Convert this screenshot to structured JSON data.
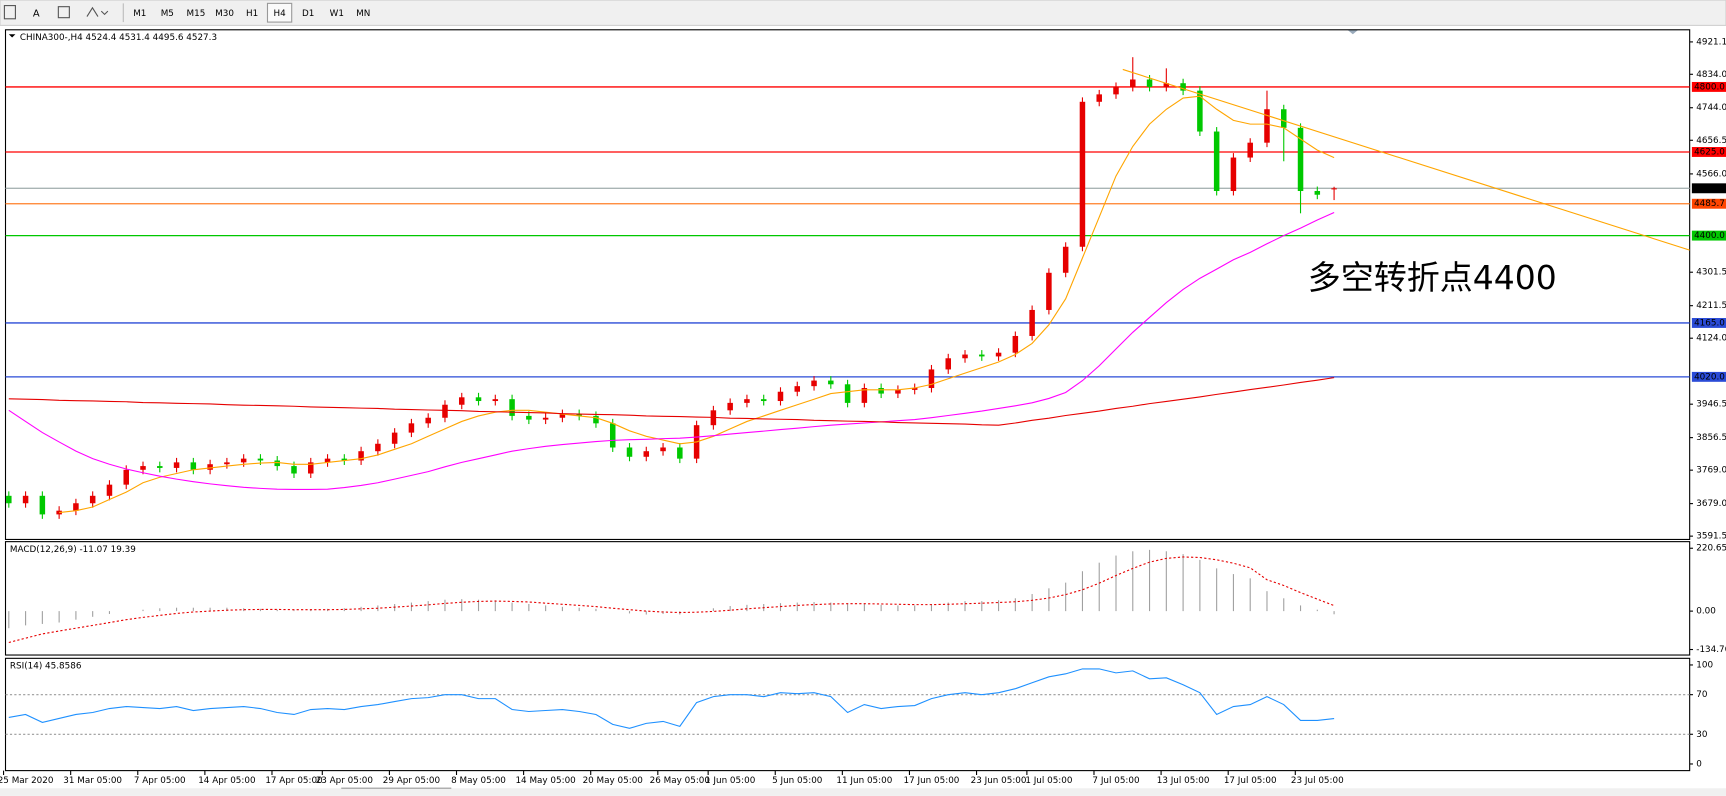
{
  "toolbar": {
    "font_button": "A",
    "periods": [
      "M1",
      "M5",
      "M15",
      "M30",
      "H1",
      "H4",
      "D1",
      "W1",
      "MN"
    ]
  },
  "chart_data": [
    {
      "type": "candlestick",
      "title": "CHINA300-,H4  4524.4 4531.4 4495.6 4527.3",
      "up_color": "#e60000",
      "down_color": "#00c800",
      "open": [
        3700,
        3680,
        3700,
        3650,
        3660,
        3680,
        3700,
        3730,
        3770,
        3780,
        3775,
        3790,
        3770,
        3785,
        3790,
        3800,
        3795,
        3780,
        3760,
        3790,
        3800,
        3795,
        3820,
        3840,
        3870,
        3895,
        3910,
        3945,
        3965,
        3955,
        3960,
        3915,
        3905,
        3910,
        3920,
        3915,
        3895,
        3830,
        3805,
        3820,
        3830,
        3800,
        3890,
        3930,
        3950,
        3960,
        3955,
        3980,
        3995,
        4010,
        4000,
        3950,
        3990,
        3975,
        3985,
        3990,
        4040,
        4070,
        4080,
        4075,
        4085,
        4130,
        4200,
        4300,
        4370,
        4760,
        4780,
        4800,
        4820,
        4800,
        4810,
        4790,
        4680,
        4520,
        4610,
        4650,
        4740,
        4690,
        4520,
        4524.4
      ],
      "high": [
        3712,
        3712,
        3712,
        3672,
        3692,
        3712,
        3742,
        3782,
        3792,
        3792,
        3802,
        3802,
        3797,
        3802,
        3812,
        3812,
        3807,
        3792,
        3802,
        3812,
        3812,
        3832,
        3852,
        3882,
        3907,
        3922,
        3957,
        3977,
        3977,
        3972,
        3972,
        3927,
        3922,
        3932,
        3932,
        3927,
        3907,
        3842,
        3832,
        3842,
        3842,
        3902,
        3942,
        3962,
        3972,
        3972,
        3992,
        4007,
        4022,
        4022,
        4012,
        4002,
        4002,
        3997,
        4002,
        4052,
        4082,
        4092,
        4092,
        4097,
        4142,
        4212,
        4312,
        4382,
        4772,
        4792,
        4812,
        4880,
        4832,
        4850,
        4822,
        4802,
        4692,
        4622,
        4662,
        4790,
        4752,
        4702,
        4532,
        4531.4
      ],
      "low": [
        3668,
        3668,
        3638,
        3638,
        3648,
        3668,
        3688,
        3718,
        3758,
        3763,
        3763,
        3758,
        3758,
        3773,
        3778,
        3783,
        3768,
        3748,
        3748,
        3778,
        3783,
        3783,
        3808,
        3828,
        3858,
        3883,
        3898,
        3933,
        3943,
        3943,
        3903,
        3893,
        3893,
        3898,
        3903,
        3883,
        3818,
        3793,
        3793,
        3808,
        3788,
        3788,
        3878,
        3918,
        3938,
        3943,
        3943,
        3968,
        3983,
        3988,
        3938,
        3938,
        3963,
        3963,
        3973,
        3978,
        4028,
        4058,
        4063,
        4063,
        4073,
        4118,
        4188,
        4288,
        4358,
        4748,
        4768,
        4788,
        4788,
        4788,
        4778,
        4668,
        4508,
        4508,
        4598,
        4638,
        4600,
        4460,
        4498,
        4495.6
      ],
      "close": [
        3680,
        3700,
        3650,
        3660,
        3680,
        3700,
        3730,
        3770,
        3780,
        3775,
        3790,
        3770,
        3785,
        3790,
        3800,
        3795,
        3780,
        3760,
        3790,
        3800,
        3795,
        3820,
        3840,
        3870,
        3895,
        3910,
        3945,
        3965,
        3955,
        3960,
        3915,
        3905,
        3910,
        3920,
        3915,
        3895,
        3830,
        3805,
        3820,
        3830,
        3800,
        3890,
        3930,
        3950,
        3960,
        3955,
        3980,
        3995,
        4010,
        4000,
        3950,
        3990,
        3975,
        3985,
        3990,
        4040,
        4070,
        4080,
        4075,
        4085,
        4130,
        4200,
        4300,
        4370,
        4760,
        4780,
        4800,
        4820,
        4800,
        4810,
        4790,
        4680,
        4520,
        4610,
        4650,
        4740,
        4690,
        4520,
        4510,
        4527.3
      ],
      "series": [
        {
          "color": "#ffa500",
          "values": [
            null,
            null,
            null,
            3655,
            3660,
            3670,
            3690,
            3710,
            3735,
            3750,
            3760,
            3770,
            3775,
            3780,
            3785,
            3788,
            3790,
            3785,
            3785,
            3790,
            3795,
            3800,
            3810,
            3825,
            3840,
            3860,
            3880,
            3900,
            3915,
            3925,
            3930,
            3930,
            3925,
            3920,
            3915,
            3910,
            3895,
            3875,
            3860,
            3850,
            3840,
            3845,
            3860,
            3880,
            3900,
            3915,
            3930,
            3945,
            3960,
            3975,
            3980,
            3985,
            3985,
            3985,
            3990,
            4000,
            4015,
            4030,
            4045,
            4060,
            4080,
            4110,
            4160,
            4230,
            4340,
            4450,
            4560,
            4640,
            4700,
            4740,
            4770,
            4775,
            4740,
            4710,
            4700,
            4700,
            4690,
            4660,
            4630,
            4610
          ]
        },
        {
          "color": "#ff00ff",
          "values": [
            3930,
            3900,
            3870,
            3845,
            3820,
            3800,
            3785,
            3772,
            3762,
            3753,
            3745,
            3738,
            3732,
            3727,
            3723,
            3720,
            3718,
            3717,
            3717,
            3718,
            3722,
            3728,
            3735,
            3745,
            3755,
            3765,
            3778,
            3790,
            3800,
            3810,
            3820,
            3827,
            3833,
            3838,
            3842,
            3846,
            3849,
            3851,
            3852,
            3854,
            3855,
            3858,
            3862,
            3866,
            3870,
            3874,
            3878,
            3882,
            3886,
            3890,
            3893,
            3896,
            3899,
            3902,
            3905,
            3910,
            3916,
            3922,
            3928,
            3935,
            3942,
            3950,
            3962,
            3978,
            4010,
            4050,
            4095,
            4140,
            4180,
            4220,
            4255,
            4285,
            4310,
            4335,
            4355,
            4378,
            4400,
            4420,
            4442,
            4462
          ]
        },
        {
          "color": "#e60000",
          "values": [
            3961,
            3960,
            3959,
            3957,
            3956,
            3955,
            3954,
            3953,
            3951,
            3950,
            3949,
            3948,
            3947,
            3945,
            3944,
            3943,
            3942,
            3941,
            3939,
            3938,
            3937,
            3936,
            3935,
            3933,
            3932,
            3931,
            3930,
            3929,
            3927,
            3926,
            3925,
            3924,
            3923,
            3921,
            3920,
            3919,
            3918,
            3917,
            3915,
            3914,
            3913,
            3912,
            3911,
            3909,
            3908,
            3907,
            3906,
            3905,
            3903,
            3902,
            3901,
            3900,
            3899,
            3897,
            3896,
            3895,
            3894,
            3893,
            3891,
            3890,
            3896,
            3903,
            3909,
            3916,
            3922,
            3928,
            3935,
            3941,
            3948,
            3954,
            3960,
            3966,
            3973,
            3979,
            3986,
            3992,
            3998,
            4005,
            4011,
            4018
          ]
        }
      ],
      "levels": [
        {
          "value": 4800,
          "label": "4800.0",
          "color": "#ff0000",
          "label_color": "#ff0000"
        },
        {
          "value": 4625,
          "label": "4625.0",
          "color": "#ff0000",
          "label_color": "#ff0000"
        },
        {
          "value": 4527.3,
          "label": "4527.3",
          "color": "#a9b4b4",
          "label_color": "#000000"
        },
        {
          "value": 4485.7,
          "label": "4485.7",
          "color": "#ff7f27",
          "label_color": "#ff4500"
        },
        {
          "value": 4400,
          "label": "4400.0",
          "color": "#00c800",
          "label_color": "#00c800"
        },
        {
          "value": 4165,
          "label": "4165.0",
          "color": "#2a4bd7",
          "label_color": "#2a4bd7"
        },
        {
          "value": 4020,
          "label": "4020.0",
          "color": "#2a4bd7",
          "label_color": "#2a4bd7"
        }
      ],
      "trendline": {
        "color": "#ffa500",
        "values": [
          4847,
          4361
        ]
      },
      "annotation": "多空转折点4400",
      "annotation_color": "#e60000",
      "ylim": [
        3582.6,
        4953.7
      ],
      "yticks": [
        4921.1,
        {
          "value": 4834,
          "label": "4834.0"
        },
        {
          "value": 4744,
          "label": "4744.0"
        },
        4656.5,
        {
          "value": 4566,
          "label": "4566.0"
        },
        4301.5,
        4211.5,
        {
          "value": 4124,
          "label": "4124.0"
        },
        3946.5,
        3856.5,
        {
          "value": 3769,
          "label": "3769.0"
        },
        {
          "value": 3679,
          "label": "3679.0"
        },
        3591.5
      ]
    },
    {
      "type": "macd",
      "title": "MACD(12,26,9) -11.07 19.39",
      "histogram": {
        "color": "#a0a0a0",
        "values": [
          -60,
          -50,
          -45,
          -40,
          -30,
          -20,
          -10,
          0,
          5,
          10,
          12,
          12,
          12,
          12,
          10,
          8,
          5,
          3,
          5,
          8,
          10,
          15,
          20,
          25,
          30,
          35,
          40,
          42,
          40,
          38,
          30,
          25,
          20,
          15,
          12,
          8,
          0,
          -8,
          -12,
          -10,
          -12,
          0,
          10,
          18,
          22,
          25,
          28,
          30,
          32,
          30,
          25,
          25,
          22,
          20,
          20,
          25,
          30,
          35,
          35,
          38,
          45,
          60,
          80,
          100,
          140,
          170,
          195,
          210,
          215,
          210,
          200,
          180,
          150,
          130,
          115,
          70,
          45,
          20,
          5,
          -11.07
        ]
      },
      "signal": {
        "color": "#e60000",
        "values": [
          -110,
          -95,
          -80,
          -70,
          -60,
          -50,
          -40,
          -30,
          -22,
          -15,
          -8,
          -3,
          0,
          3,
          5,
          6,
          6,
          5,
          5,
          5,
          6,
          8,
          10,
          14,
          18,
          22,
          27,
          31,
          34,
          35,
          34,
          32,
          28,
          24,
          20,
          16,
          10,
          5,
          0,
          -3,
          -5,
          -4,
          -1,
          3,
          8,
          12,
          16,
          20,
          23,
          25,
          26,
          26,
          25,
          24,
          23,
          23,
          24,
          26,
          28,
          30,
          33,
          38,
          46,
          58,
          75,
          98,
          125,
          150,
          172,
          185,
          190,
          188,
          180,
          168,
          152,
          110,
          90,
          65,
          42,
          19.39
        ]
      },
      "ylim": [
        -154.1,
        243.8
      ],
      "yticks": [
        220.65,
        {
          "value": 0,
          "label": "0.00"
        },
        -134.76
      ]
    },
    {
      "type": "rsi",
      "title": "RSI(14) 45.8586",
      "color": "#1e90ff",
      "values": [
        47,
        50,
        42,
        46,
        50,
        52,
        56,
        58,
        57,
        56,
        58,
        54,
        56,
        57,
        58,
        56,
        52,
        50,
        55,
        56,
        55,
        58,
        60,
        63,
        66,
        67,
        70,
        70,
        66,
        66,
        55,
        53,
        54,
        55,
        53,
        50,
        40,
        36,
        41,
        43,
        38,
        62,
        68,
        70,
        70,
        68,
        72,
        71,
        72,
        68,
        52,
        60,
        56,
        58,
        59,
        66,
        70,
        72,
        70,
        72,
        76,
        82,
        88,
        91,
        96,
        96,
        92,
        94,
        86,
        87,
        80,
        72,
        50,
        58,
        60,
        68,
        60,
        44,
        44,
        45.8586
      ],
      "levels": [
        70,
        30
      ],
      "categories": [
        null,
        "25 Mar 2020",
        null,
        null,
        null,
        "31 Mar 05:00",
        null,
        null,
        null,
        "7 Apr 05:00",
        null,
        null,
        null,
        "14 Apr 05:00",
        null,
        null,
        null,
        "17 Apr 05:00",
        null,
        null,
        "23 Apr 05:00",
        null,
        null,
        null,
        "29 Apr 05:00",
        null,
        null,
        null,
        "8 May 05:00",
        null,
        null,
        null,
        "14 May 05:00",
        null,
        null,
        null,
        "20 May 05:00",
        null,
        null,
        null,
        "26 May 05:00",
        null,
        null,
        "1 Jun 05:00",
        null,
        null,
        null,
        "5 Jun 05:00",
        null,
        null,
        null,
        "11 Jun 05:00",
        null,
        null,
        null,
        "17 Jun 05:00",
        null,
        null,
        null,
        "23 Jun 05:00",
        null,
        null,
        "1 Jul 05:00",
        null,
        null,
        null,
        "7 Jul 05:00",
        null,
        null,
        null,
        "13 Jul 05:00",
        null,
        null,
        null,
        "17 Jul 05:00",
        null,
        null,
        null,
        "23 Jul 05:00",
        null
      ],
      "ylim": [
        -6.7,
        106.7
      ],
      "yticks": [
        100,
        70,
        30,
        0
      ]
    }
  ]
}
